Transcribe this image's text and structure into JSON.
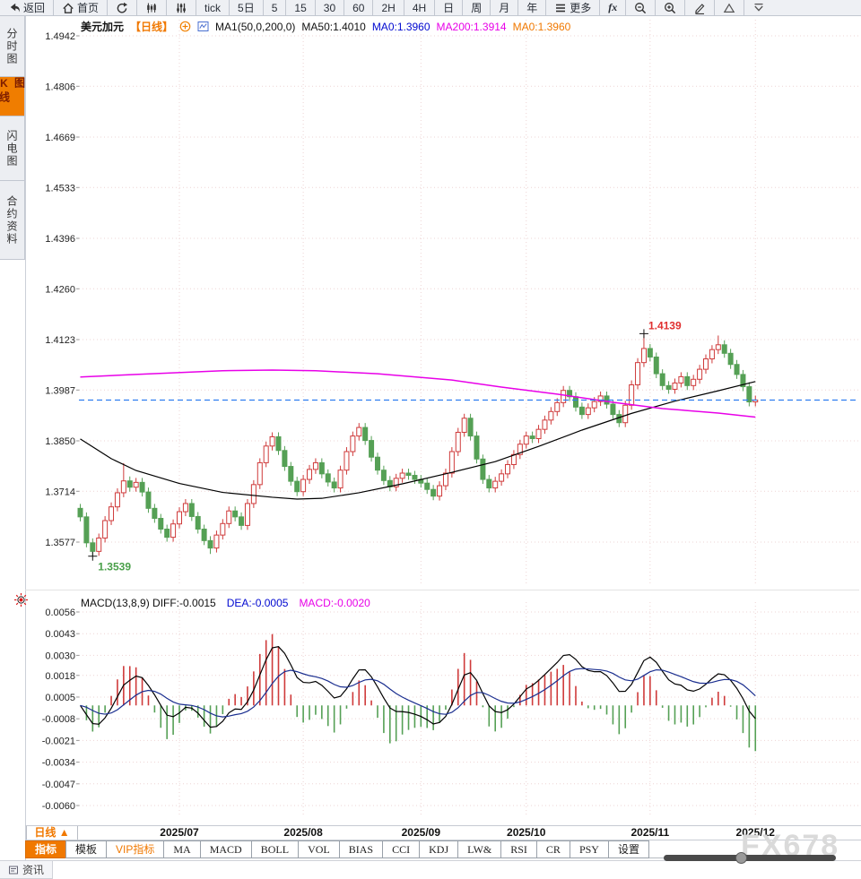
{
  "toolbar": {
    "items": [
      {
        "name": "back",
        "label": "返回",
        "icon": "back"
      },
      {
        "name": "home",
        "label": "首页",
        "icon": "home"
      },
      {
        "name": "refresh",
        "label": "",
        "icon": "refresh"
      },
      {
        "name": "candle-chart-type",
        "label": "",
        "icon": "candle"
      },
      {
        "name": "sliders-chart-type",
        "label": "",
        "icon": "sliders"
      },
      {
        "name": "tick",
        "label": "tick"
      },
      {
        "name": "5d",
        "label": "5日"
      },
      {
        "name": "5min",
        "label": "5"
      },
      {
        "name": "15min",
        "label": "15"
      },
      {
        "name": "30min",
        "label": "30"
      },
      {
        "name": "60min",
        "label": "60"
      },
      {
        "name": "2h",
        "label": "2H"
      },
      {
        "name": "4h",
        "label": "4H"
      },
      {
        "name": "daily",
        "label": "日"
      },
      {
        "name": "weekly",
        "label": "周"
      },
      {
        "name": "monthly",
        "label": "月"
      },
      {
        "name": "yearly",
        "label": "年"
      },
      {
        "name": "more",
        "label": "更多",
        "icon": "menu"
      },
      {
        "name": "fx",
        "label": "fx"
      },
      {
        "name": "zoom-out",
        "label": "",
        "icon": "zoomout"
      },
      {
        "name": "zoom-in",
        "label": "",
        "icon": "zoomin"
      },
      {
        "name": "draw",
        "label": "",
        "icon": "pencil"
      },
      {
        "name": "shape-triangle",
        "label": "",
        "icon": "triangle"
      },
      {
        "name": "collapse",
        "label": "",
        "icon": "chevdown"
      }
    ]
  },
  "sidebar": {
    "items": [
      {
        "label": "分时图",
        "active": false
      },
      {
        "label": "K线图",
        "active": true
      },
      {
        "label": "闪电图",
        "active": false
      },
      {
        "label": "合约资料",
        "active": false
      }
    ],
    "news_label": "资讯"
  },
  "chart_header": {
    "symbol": "美元加元",
    "period_tag": "【日线】",
    "ma_settings": "MA1(50,0,200,0)",
    "ma50_label": "MA50:1.4010",
    "ma0_blue": "MA0:1.3960",
    "ma200_label": "MA200:1.3914",
    "ma0_orange": "MA0:1.3960"
  },
  "macd_header": {
    "main": "MACD(13,8,9) DIFF:-0.0015",
    "dea": "DEA:-0.0005",
    "macd": "MACD:-0.0020"
  },
  "bottom": {
    "period_selector": "日线 ▲",
    "tabs": [
      {
        "label": "指标",
        "style": "active"
      },
      {
        "label": "模板",
        "style": ""
      },
      {
        "label": "VIP指标",
        "style": "vip"
      }
    ],
    "indicators": [
      "MA",
      "MACD",
      "BOLL",
      "VOL",
      "BIAS",
      "CCI",
      "KDJ",
      "LW&",
      "RSI",
      "CR",
      "PSY",
      "设置"
    ],
    "watermark": "FX678"
  },
  "chart_data": {
    "type": "candlestick",
    "symbol": "美元加元",
    "period": "日线",
    "y_axis_main": [
      1.4942,
      1.4806,
      1.4669,
      1.4533,
      1.4396,
      1.426,
      1.4123,
      1.3987,
      1.385,
      1.3714,
      1.3577
    ],
    "y_axis_macd": [
      0.0056,
      0.0043,
      0.003,
      0.0018,
      0.0005,
      -0.0008,
      -0.0021,
      -0.0034,
      -0.0047,
      -0.006
    ],
    "x_labels": [
      {
        "label": "2025/07",
        "index": 16
      },
      {
        "label": "2025/08",
        "index": 36
      },
      {
        "label": "2025/09",
        "index": 55
      },
      {
        "label": "2025/10",
        "index": 72
      },
      {
        "label": "2025/11",
        "index": 92
      },
      {
        "label": "2025/12",
        "index": 109
      }
    ],
    "last_price": 1.396,
    "annotations": {
      "high": {
        "index": 91,
        "price": 1.4139,
        "label": "1.4139"
      },
      "low": {
        "index": 2,
        "price": 1.3539,
        "label": "1.3539"
      }
    },
    "first_open": 1.3668,
    "default_wick": 0.0012,
    "closes": [
      1.3645,
      1.3575,
      1.3552,
      1.3588,
      1.3635,
      1.3672,
      1.371,
      1.3742,
      1.3725,
      1.3738,
      1.3712,
      1.3668,
      1.3641,
      1.3612,
      1.359,
      1.3626,
      1.3659,
      1.3681,
      1.3646,
      1.3612,
      1.3581,
      1.3561,
      1.3596,
      1.3627,
      1.3661,
      1.3645,
      1.3622,
      1.3681,
      1.3732,
      1.3791,
      1.3836,
      1.3861,
      1.3824,
      1.3781,
      1.3741,
      1.3713,
      1.3746,
      1.3773,
      1.3791,
      1.3761,
      1.3739,
      1.3723,
      1.3771,
      1.3821,
      1.3863,
      1.3886,
      1.3851,
      1.3806,
      1.3771,
      1.3743,
      1.3726,
      1.3749,
      1.3763,
      1.3757,
      1.3746,
      1.3736,
      1.3719,
      1.3701,
      1.3729,
      1.3763,
      1.3821,
      1.3873,
      1.3911,
      1.3863,
      1.3801,
      1.3746,
      1.3723,
      1.3741,
      1.3761,
      1.3786,
      1.3813,
      1.3841,
      1.3863,
      1.3856,
      1.3881,
      1.3906,
      1.3929,
      1.3953,
      1.3986,
      1.3969,
      1.3941,
      1.3921,
      1.3939,
      1.3956,
      1.3971,
      1.3949,
      1.3921,
      1.3899,
      1.3946,
      1.4001,
      1.4061,
      1.4099,
      1.4076,
      1.4031,
      1.3999,
      1.3989,
      1.4006,
      1.4023,
      1.3999,
      1.4016,
      1.4043,
      1.4071,
      1.4096,
      1.4109,
      1.4086,
      1.4056,
      1.4029,
      1.3996,
      1.3955,
      1.396
    ],
    "wick_overrides": {
      "2": {
        "low": 1.3539
      },
      "7": {
        "high": 1.379
      },
      "21": {
        "low": 1.3545
      },
      "57": {
        "low": 1.369
      },
      "91": {
        "high": 1.4139
      },
      "103": {
        "high": 1.4134
      }
    },
    "ma50_points": [
      [
        0,
        1.3855
      ],
      [
        5,
        1.3802
      ],
      [
        9,
        1.377
      ],
      [
        16,
        1.3735
      ],
      [
        23,
        1.3711
      ],
      [
        31,
        1.3698
      ],
      [
        35,
        1.3693
      ],
      [
        39,
        1.3695
      ],
      [
        45,
        1.371
      ],
      [
        52,
        1.3734
      ],
      [
        60,
        1.3765
      ],
      [
        67,
        1.3794
      ],
      [
        74,
        1.3835
      ],
      [
        81,
        1.3879
      ],
      [
        89,
        1.3924
      ],
      [
        96,
        1.3957
      ],
      [
        103,
        1.3985
      ],
      [
        109,
        1.401
      ]
    ],
    "ma200_points": [
      [
        0,
        1.4022
      ],
      [
        9,
        1.4029
      ],
      [
        23,
        1.4039
      ],
      [
        31,
        1.4041
      ],
      [
        38,
        1.4039
      ],
      [
        48,
        1.4031
      ],
      [
        60,
        1.4014
      ],
      [
        68,
        1.3995
      ],
      [
        77,
        1.3976
      ],
      [
        86,
        1.3954
      ],
      [
        94,
        1.3937
      ],
      [
        103,
        1.3925
      ],
      [
        109,
        1.3914
      ]
    ],
    "macd_params": "MACD(13,8,9)",
    "macd_last": {
      "diff": -0.0015,
      "dea": -0.0005,
      "macd": -0.002
    },
    "colors": {
      "up": "#cf3a3a",
      "down": "#55a055",
      "ma50": "#000000",
      "ma200": "#e800e8",
      "last_price_line": "#2e7df0",
      "dea_line": "#1a2e8f",
      "grid": "#eed4d4",
      "high_label": "#e03030",
      "low_label": "#4aa04a"
    }
  }
}
